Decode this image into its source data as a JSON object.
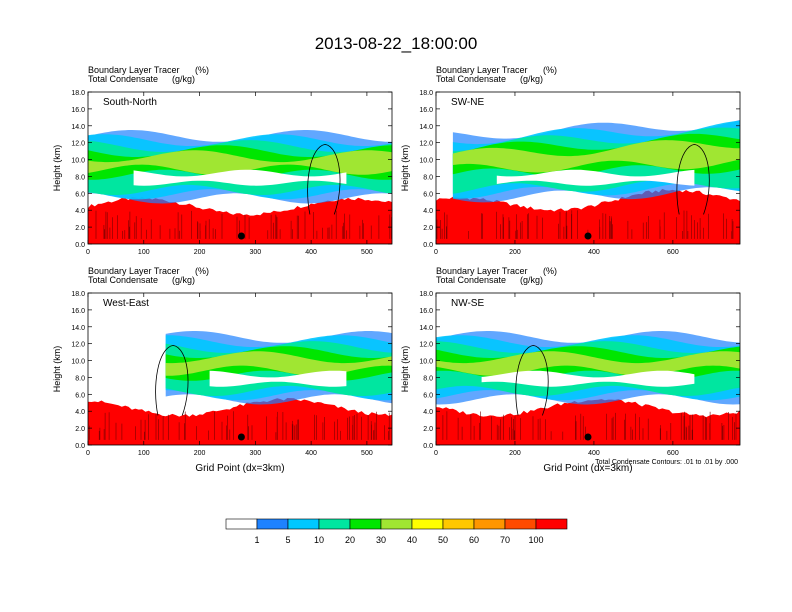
{
  "page_title": "2013-08-22_18:00:00",
  "colorbar": {
    "labels": [
      "1",
      "5",
      "10",
      "20",
      "30",
      "40",
      "50",
      "60",
      "70",
      "100"
    ],
    "colors": [
      "#ffffff",
      "#1e82ff",
      "#00c8ff",
      "#00e6a0",
      "#00e600",
      "#a0e632",
      "#ffff00",
      "#ffc800",
      "#ff9600",
      "#ff4b00",
      "#ff0000"
    ]
  },
  "chart_data": [
    {
      "type": "heatmap",
      "title": "South-North",
      "title_left_line1": "Boundary Layer Tracer",
      "title_left_line1_units": "(%)",
      "title_left_line2": "Total Condensate",
      "title_left_line2_units": "(g/kg)",
      "ylabel": "Height (km)",
      "xlabel": "",
      "xlim": [
        0,
        545
      ],
      "ylim": [
        0,
        18
      ],
      "x_ticks": [
        "0",
        "100",
        "200",
        "300",
        "400",
        "500"
      ],
      "y_ticks": [
        "0.0",
        "2.0",
        "4.0",
        "6.0",
        "8.0",
        "10.0",
        "12.0",
        "14.0",
        "16.0",
        "18.0"
      ],
      "marker_x": 275,
      "footnote": ""
    },
    {
      "type": "heatmap",
      "title": "SW-NE",
      "title_left_line1": "Boundary Layer Tracer",
      "title_left_line1_units": "(%)",
      "title_left_line2": "Total Condensate",
      "title_left_line2_units": "(g/kg)",
      "ylabel": "Height (km)",
      "xlabel": "",
      "xlim": [
        0,
        770
      ],
      "ylim": [
        0,
        18
      ],
      "x_ticks": [
        "0",
        "200",
        "400",
        "600"
      ],
      "y_ticks": [
        "0.0",
        "2.0",
        "4.0",
        "6.0",
        "8.0",
        "10.0",
        "12.0",
        "14.0",
        "16.0",
        "18.0"
      ],
      "marker_x": 385,
      "footnote": ""
    },
    {
      "type": "heatmap",
      "title": "West-East",
      "title_left_line1": "Boundary Layer Tracer",
      "title_left_line1_units": "(%)",
      "title_left_line2": "Total Condensate",
      "title_left_line2_units": "(g/kg)",
      "ylabel": "Height (km)",
      "xlabel": "Grid Point (dx=3km)",
      "xlim": [
        0,
        545
      ],
      "ylim": [
        0,
        18
      ],
      "x_ticks": [
        "0",
        "100",
        "200",
        "300",
        "400",
        "500"
      ],
      "y_ticks": [
        "0.0",
        "2.0",
        "4.0",
        "6.0",
        "8.0",
        "10.0",
        "12.0",
        "14.0",
        "16.0",
        "18.0"
      ],
      "marker_x": 275,
      "footnote": ""
    },
    {
      "type": "heatmap",
      "title": "NW-SE",
      "title_left_line1": "Boundary Layer Tracer",
      "title_left_line1_units": "(%)",
      "title_left_line2": "Total Condensate",
      "title_left_line2_units": "(g/kg)",
      "ylabel": "Height (km)",
      "xlabel": "Grid Point (dx=3km)",
      "xlim": [
        0,
        770
      ],
      "ylim": [
        0,
        18
      ],
      "x_ticks": [
        "0",
        "200",
        "400",
        "600"
      ],
      "y_ticks": [
        "0.0",
        "2.0",
        "4.0",
        "6.0",
        "8.0",
        "10.0",
        "12.0",
        "14.0",
        "16.0",
        "18.0"
      ],
      "marker_x": 385,
      "footnote": "Total Condensate Contours: .01 to .01 by .000"
    }
  ]
}
